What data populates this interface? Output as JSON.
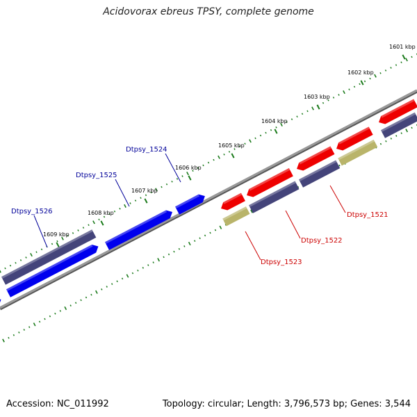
{
  "title": "Acidovorax ebreus TPSY, complete genome",
  "footer": {
    "accession": "Accession: NC_011992",
    "topology": "Topology: circular; Length: 3,796,573 bp; Genes: 3,544"
  },
  "scale": {
    "ticks": [
      {
        "label": "1601 kbp",
        "kbp": 1601
      },
      {
        "label": "1602 kbp",
        "kbp": 1602
      },
      {
        "label": "1603 kbp",
        "kbp": 1603
      },
      {
        "label": "1604 kbp",
        "kbp": 1604
      },
      {
        "label": "1605 kbp",
        "kbp": 1605
      },
      {
        "label": "1606 kbp",
        "kbp": 1606
      },
      {
        "label": "1607 kbp",
        "kbp": 1607
      },
      {
        "label": "1608 kbp",
        "kbp": 1608
      },
      {
        "label": "1609 kbp",
        "kbp": 1609
      }
    ]
  },
  "colors": {
    "backbone": "#888888",
    "tick": "#1a7a1a",
    "forward_cds": "#0000ee",
    "reverse_cds": "#ee0000",
    "other_feature": "#44447a",
    "rna_feature": "#b9b46a",
    "forward_label": "#000099",
    "reverse_label": "#cc0000"
  },
  "gene_labels": [
    {
      "id": "g1526",
      "label": "Dtpsy_1526",
      "strand": "forward"
    },
    {
      "id": "g1525",
      "label": "Dtpsy_1525",
      "strand": "forward"
    },
    {
      "id": "g1524",
      "label": "Dtpsy_1524",
      "strand": "forward"
    },
    {
      "id": "g1523",
      "label": "Dtpsy_1523",
      "strand": "reverse"
    },
    {
      "id": "g1522",
      "label": "Dtpsy_1522",
      "strand": "reverse"
    },
    {
      "id": "g1521",
      "label": "Dtpsy_1521",
      "strand": "reverse"
    }
  ]
}
